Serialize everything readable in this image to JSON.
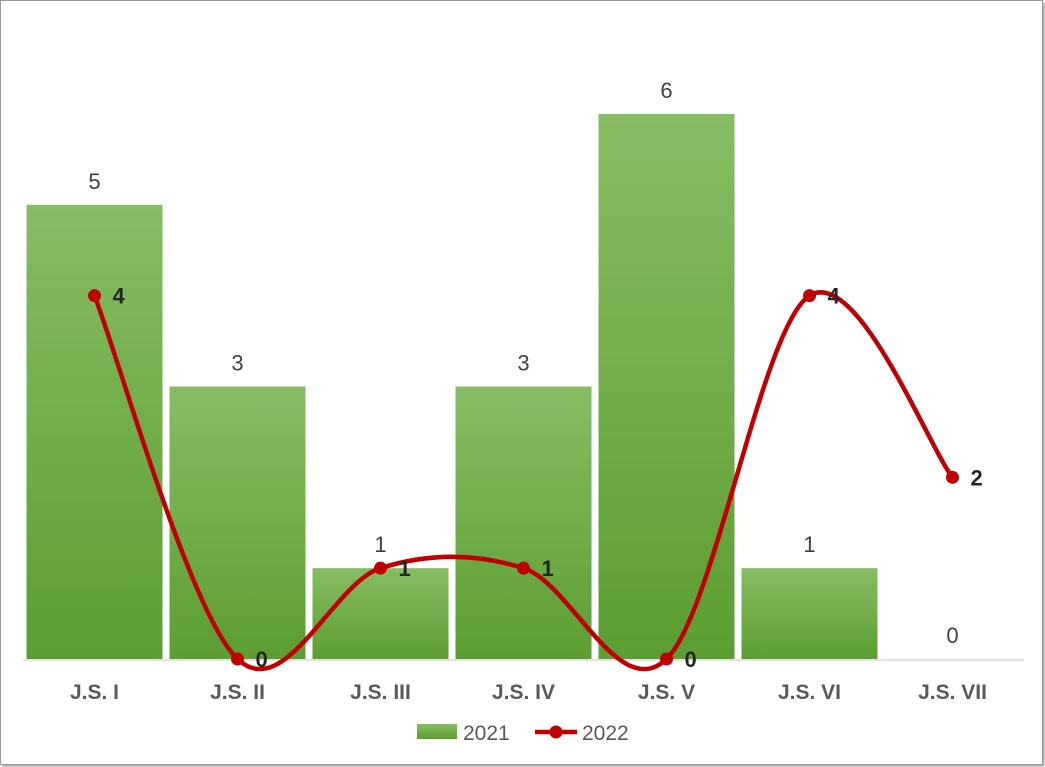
{
  "chart_data": {
    "type": "bar",
    "categories": [
      "J.S. I",
      "J.S. II",
      "J.S. III",
      "J.S. IV",
      "J.S. V",
      "J.S. VI",
      "J.S. VII"
    ],
    "series": [
      {
        "name": "2021",
        "type": "bar",
        "values": [
          5,
          3,
          1,
          3,
          6,
          1,
          0
        ],
        "color": "#70ad47"
      },
      {
        "name": "2022",
        "type": "line",
        "smooth": true,
        "values": [
          4,
          0,
          1,
          1,
          0,
          4,
          2
        ],
        "color": "#c00000"
      }
    ],
    "ylim": [
      0,
      6
    ],
    "grid": false,
    "legend_position": "bottom"
  }
}
